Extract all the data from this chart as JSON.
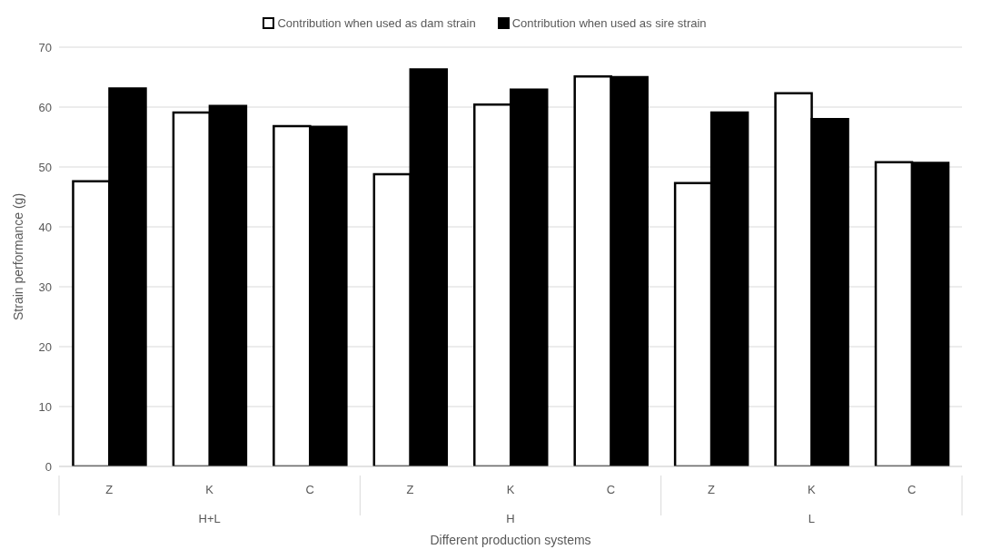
{
  "chart_data": {
    "type": "bar",
    "xlabel": "Different production systems",
    "ylabel": "Strain performance (g)",
    "categories": [
      "Z",
      "K",
      "C",
      "Z",
      "K",
      "C",
      "Z",
      "K",
      "C"
    ],
    "annotations": [
      "H+L",
      "H",
      "L"
    ],
    "series": [
      {
        "name": "Contribution when used as dam strain",
        "color": "#ffffff",
        "values": [
          47.6,
          59.1,
          56.8,
          48.8,
          60.4,
          65.1,
          47.3,
          62.3,
          50.8
        ]
      },
      {
        "name": "Contribution when used as sire strain",
        "color": "#000000",
        "values": [
          63.1,
          60.2,
          56.7,
          66.3,
          62.9,
          65.0,
          59.1,
          58.0,
          50.7
        ]
      }
    ],
    "ylim": [
      0,
      70
    ],
    "yticks": [
      0,
      10,
      20,
      30,
      40,
      50,
      60,
      70
    ],
    "grid": "y",
    "legend": "top"
  }
}
